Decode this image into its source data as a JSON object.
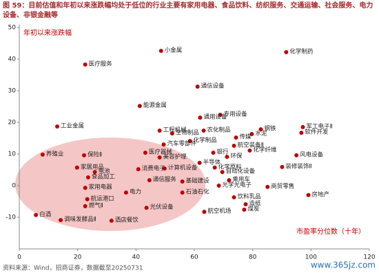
{
  "chart_data": {
    "type": "scatter",
    "title": "图 59：目前估值和年初以来涨跌幅均处于低位的行业主要有家用电器、食品饮料、纺织服务、交通运输、社会服务、电力设备、非银金融等",
    "y_label": "年初以来涨跌幅",
    "x_label": "市盈率分位数（十年）",
    "source": "资料来源：Wind，招商证券，数据截至20250731",
    "watermark": "www.365jz.com",
    "xlim": [
      0,
      120
    ],
    "xticks": [
      0,
      20,
      40,
      60,
      80,
      100,
      120
    ],
    "ylim": [
      -20,
      50
    ],
    "yticks": [
      -10,
      0,
      10,
      20,
      30,
      40,
      50
    ],
    "color": "#c00000",
    "labels": [
      "小金属",
      "化学制药",
      "医疗服务",
      "通信设备",
      "能源金属",
      "专用设备",
      "通用设备",
      "军工电子Ⅱ",
      "工业金属",
      "钢铁",
      "水泥",
      "软件开发",
      "传媒",
      "工程机械",
      "生物制品",
      "农化制品",
      "化学制品",
      "汽车零部件",
      "航空装备Ⅱ",
      "化学纤维",
      "风电设备",
      "养殖业",
      "保险Ⅱ",
      "医疗器械",
      "美容护理",
      "银行",
      "环保",
      "装修装饰Ⅱ",
      "半导体",
      "计算机设备",
      "消费电子",
      "电池",
      "家居用品",
      "自动化设备",
      "化学原料",
      "食品加工",
      "通信服务",
      "光伏设备",
      "基础建设",
      "家用电器",
      "电力",
      "航运港口",
      "燃气Ⅱ",
      "酒店餐饮",
      "白酒",
      "调味发酵品Ⅱ",
      "商贸零售",
      "房地产",
      "石油石化",
      "饮料乳品",
      "航空机场",
      "煤炭",
      "造纸",
      "光学光电子",
      "乘用车"
    ],
    "x": [
      48.6,
      91.5,
      22.6,
      61.1,
      41.3,
      68.9,
      62.0,
      97.2,
      13.0,
      82.8,
      79.7,
      96.7,
      74.3,
      48.1,
      52.4,
      63.2,
      58.5,
      49.5,
      73.6,
      79.0,
      95.0,
      8.0,
      22.2,
      43.2,
      48.1,
      66.5,
      71.2,
      90.1,
      61.8,
      49.8,
      40.8,
      25.9,
      19.8,
      69.6,
      67.0,
      23.6,
      44.6,
      43.6,
      55.9,
      22.6,
      36.6,
      23.3,
      22.6,
      31.6,
      5.7,
      14.2,
      85.1,
      99.1,
      55.9,
      73.6,
      63.4,
      77.1,
      77.6,
      68.4,
      71.9
    ],
    "y": [
      42.6,
      42.2,
      38.3,
      31.3,
      25.2,
      22.4,
      21.5,
      18.5,
      18.7,
      17.8,
      16.3,
      16.7,
      15.2,
      17.4,
      16.5,
      17.4,
      14.1,
      13.0,
      12.6,
      11.1,
      9.6,
      9.8,
      9.6,
      10.4,
      8.9,
      10.4,
      9.1,
      5.9,
      7.2,
      5.4,
      5.2,
      4.3,
      5.7,
      4.3,
      5.7,
      2.6,
      1.7,
      -7.0,
      1.3,
      -0.7,
      -2.2,
      -4.3,
      -6.5,
      -11.1,
      -9.3,
      -10.9,
      -0.4,
      -3.0,
      -2.2,
      -3.7,
      -8.3,
      -7.6,
      -5.9,
      0.0,
      1.7
    ]
  }
}
